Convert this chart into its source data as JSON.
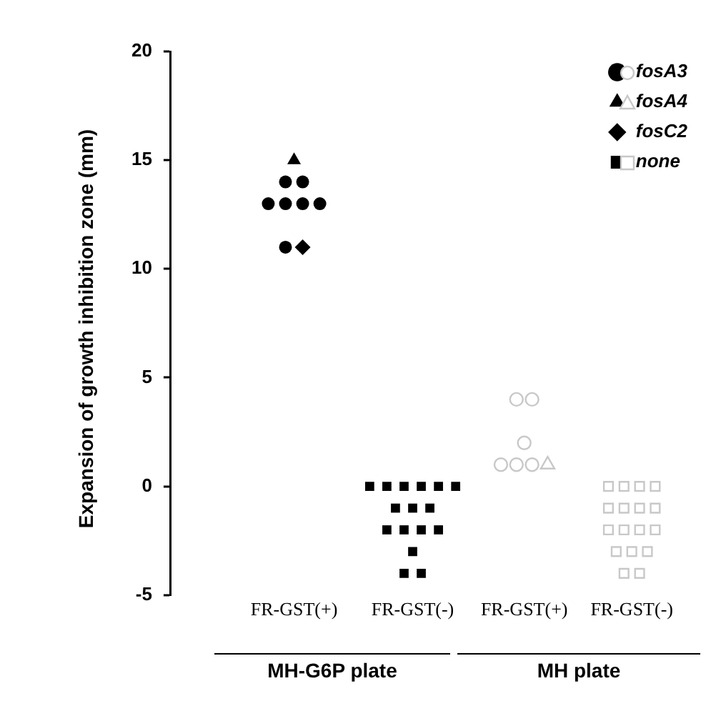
{
  "chart_data": [
    {
      "type": "scatter",
      "ylabel": "Expansion of growth inhibition zone (mm)",
      "xlabel": "MH-G6P plate",
      "categories": [
        "FR-GST(+)",
        "FR-GST(-)"
      ],
      "ylim": [
        -5,
        20
      ],
      "yticks": [
        -5,
        0,
        5,
        10,
        15,
        20
      ],
      "legend": "top right",
      "series": [
        {
          "name": "fosA3",
          "marker": "circle",
          "color": "#000000",
          "x": [
            "FR-GST(+)",
            "FR-GST(+)",
            "FR-GST(+)",
            "FR-GST(+)",
            "FR-GST(+)",
            "FR-GST(+)",
            "FR-GST(+)"
          ],
          "values": [
            14,
            14,
            13,
            13,
            13,
            13,
            11
          ]
        },
        {
          "name": "fosA4",
          "marker": "triangle",
          "color": "#000000",
          "x": [
            "FR-GST(+)"
          ],
          "values": [
            15
          ]
        },
        {
          "name": "fosC2",
          "marker": "diamond",
          "color": "#000000",
          "x": [
            "FR-GST(+)"
          ],
          "values": [
            11
          ]
        },
        {
          "name": "none",
          "marker": "square",
          "color": "#000000",
          "x": [
            "FR-GST(-)",
            "FR-GST(-)",
            "FR-GST(-)",
            "FR-GST(-)",
            "FR-GST(-)",
            "FR-GST(-)",
            "FR-GST(-)",
            "FR-GST(-)",
            "FR-GST(-)",
            "FR-GST(-)",
            "FR-GST(-)",
            "FR-GST(-)",
            "FR-GST(-)",
            "FR-GST(-)",
            "FR-GST(-)",
            "FR-GST(-)"
          ],
          "values": [
            0,
            0,
            0,
            0,
            0,
            0,
            -1,
            -1,
            -1,
            -2,
            -2,
            -2,
            -2,
            -3,
            -4,
            -4
          ]
        }
      ]
    },
    {
      "type": "scatter",
      "xlabel": "MH plate",
      "categories": [
        "FR-GST(+)",
        "FR-GST(-)"
      ],
      "ylim": [
        -5,
        20
      ],
      "tick_labels": "x",
      "series": [
        {
          "marker": "circle",
          "color": "#c8c8c8",
          "x": [
            "FR-GST(+)",
            "FR-GST(+)",
            "FR-GST(+)",
            "FR-GST(+)",
            "FR-GST(+)",
            "FR-GST(+)"
          ],
          "values": [
            4,
            4,
            2,
            1,
            1,
            1
          ]
        },
        {
          "marker": "triangle",
          "color": "#c8c8c8",
          "x": [
            "FR-GST(+)"
          ],
          "values": [
            1
          ]
        },
        {
          "marker": "square",
          "color": "#c8c8c8",
          "x": [
            "FR-GST(-)",
            "FR-GST(-)",
            "FR-GST(-)",
            "FR-GST(-)",
            "FR-GST(-)",
            "FR-GST(-)",
            "FR-GST(-)",
            "FR-GST(-)",
            "FR-GST(-)",
            "FR-GST(-)",
            "FR-GST(-)",
            "FR-GST(-)",
            "FR-GST(-)",
            "FR-GST(-)",
            "FR-GST(-)",
            "FR-GST(-)",
            "FR-GST(-)"
          ],
          "values": [
            0,
            0,
            0,
            0,
            -1,
            -1,
            -1,
            -1,
            -2,
            -2,
            -2,
            -2,
            -3,
            -3,
            -3,
            -4,
            -4
          ]
        }
      ]
    }
  ]
}
